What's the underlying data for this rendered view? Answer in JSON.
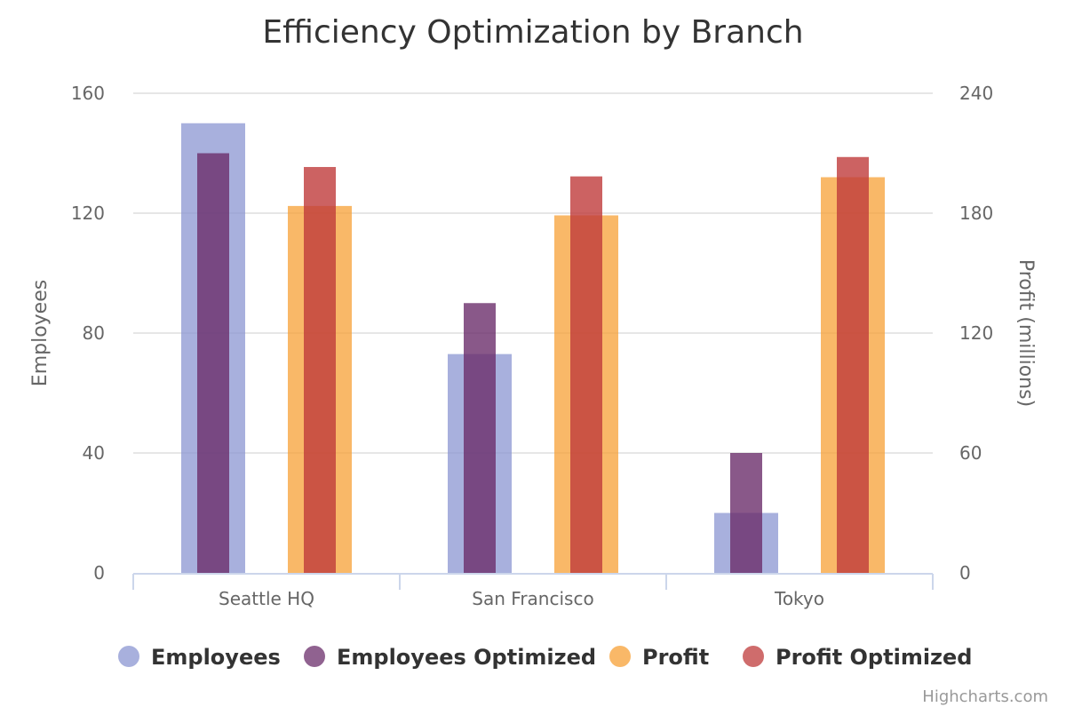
{
  "chart_data": {
    "type": "bar",
    "title": "Efficiency Optimization by Branch",
    "categories": [
      "Seattle HQ",
      "San Francisco",
      "Tokyo"
    ],
    "y_axes": [
      {
        "title": "Employees",
        "ticks": [
          "0",
          "40",
          "80",
          "120",
          "160"
        ],
        "range": [
          0,
          160
        ],
        "side": "left"
      },
      {
        "title": "Profit (millions)",
        "ticks": [
          "0",
          "60",
          "120",
          "180",
          "240"
        ],
        "range": [
          0,
          240
        ],
        "side": "right"
      }
    ],
    "series": [
      {
        "name": "Employees",
        "values": [
          150,
          73,
          20
        ],
        "axis": 0,
        "color": "#8B95D2",
        "slot": "A",
        "width": "wide"
      },
      {
        "name": "Employees Optimized",
        "values": [
          140,
          90,
          40
        ],
        "axis": 0,
        "color": "#6B2E6B",
        "slot": "A",
        "width": "narrow"
      },
      {
        "name": "Profit",
        "values": [
          183.6,
          178.9,
          198
        ],
        "axis": 1,
        "color": "#F7A035",
        "slot": "B",
        "width": "wide"
      },
      {
        "name": "Profit Optimized",
        "values": [
          203.1,
          198.4,
          208.1
        ],
        "axis": 1,
        "color": "#BF3B3B",
        "slot": "B",
        "width": "narrow"
      }
    ],
    "grid": true,
    "legend": "bottom-center"
  },
  "credits": "Highcharts.com"
}
